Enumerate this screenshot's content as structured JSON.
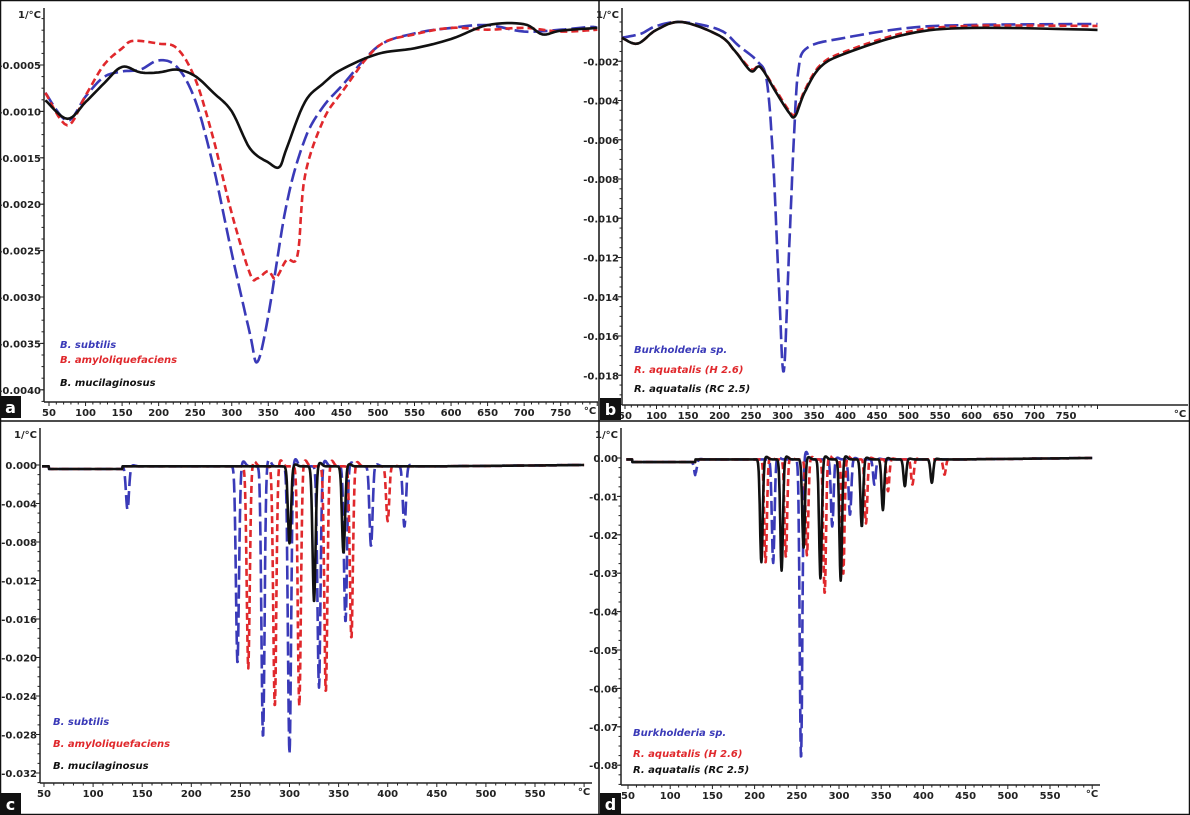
{
  "chart_data": [
    {
      "type": "line",
      "panel_label": "a",
      "ylabel": "1/°C",
      "xunit": "°C",
      "xlim": [
        50,
        800
      ],
      "ylim": [
        -0.004,
        0
      ],
      "xticks": [
        "50",
        "100",
        "150",
        "200",
        "250",
        "300",
        "350",
        "400",
        "450",
        "500",
        "550",
        "600",
        "650",
        "700",
        "750"
      ],
      "yticks": [
        {
          "v": -0.0005,
          "label": "-0.0005"
        },
        {
          "v": -0.001,
          "label": "-0.0010"
        },
        {
          "v": -0.0015,
          "label": "-0.0015"
        },
        {
          "v": -0.002,
          "label": "-0.0020"
        },
        {
          "v": -0.0025,
          "label": "-0.0025"
        },
        {
          "v": -0.003,
          "label": "-0.0030"
        },
        {
          "v": -0.0035,
          "label": "-0.0035"
        },
        {
          "v": -0.004,
          "label": "-0.0040"
        }
      ],
      "series": [
        {
          "name": "B. subtilis",
          "color": "#3a3ab8",
          "style": "long-dash",
          "x": [
            45,
            75,
            100,
            125,
            150,
            175,
            200,
            225,
            250,
            275,
            300,
            325,
            335,
            350,
            375,
            400,
            425,
            450,
            500,
            550,
            600,
            650,
            700,
            750,
            790,
            800
          ],
          "y": [
            -0.0008,
            -0.0011,
            -0.00084,
            -0.00063,
            -0.00057,
            -0.00055,
            -0.00045,
            -0.00052,
            -0.00088,
            -0.0016,
            -0.00253,
            -0.0034,
            -0.0037,
            -0.0032,
            -0.002,
            -0.0013,
            -0.00095,
            -0.00073,
            -0.0003,
            -0.00016,
            -0.0001,
            -7e-05,
            -0.00014,
            -0.00012,
            -9e-05,
            -0.0001
          ]
        },
        {
          "name": "B. amyloliquefaciens",
          "color": "#e0282c",
          "style": "short-dash",
          "x": [
            45,
            75,
            100,
            125,
            150,
            165,
            200,
            225,
            250,
            275,
            300,
            325,
            335,
            350,
            360,
            375,
            390,
            400,
            425,
            450,
            500,
            550,
            600,
            650,
            700,
            750,
            800
          ],
          "y": [
            -0.0008,
            -0.00115,
            -0.00083,
            -0.0005,
            -0.00032,
            -0.00024,
            -0.00027,
            -0.00032,
            -0.00065,
            -0.0013,
            -0.0021,
            -0.00275,
            -0.0028,
            -0.00272,
            -0.0028,
            -0.0026,
            -0.00255,
            -0.0017,
            -0.0011,
            -0.0008,
            -0.0003,
            -0.00017,
            -0.0001,
            -0.00012,
            -0.0001,
            -0.00014,
            -0.00012
          ]
        },
        {
          "name": "B. mucilaginosus",
          "color": "#111111",
          "style": "solid",
          "x": [
            45,
            75,
            100,
            125,
            150,
            175,
            200,
            225,
            250,
            275,
            300,
            325,
            350,
            365,
            375,
            400,
            425,
            450,
            500,
            550,
            600,
            650,
            700,
            725,
            750,
            800
          ],
          "y": [
            -0.00088,
            -0.00108,
            -0.0009,
            -0.0007,
            -0.00052,
            -0.00058,
            -0.00058,
            -0.00055,
            -0.00062,
            -0.0008,
            -0.001,
            -0.0014,
            -0.00155,
            -0.0016,
            -0.0014,
            -0.0009,
            -0.0007,
            -0.00055,
            -0.00038,
            -0.00032,
            -0.00022,
            -7e-05,
            -6e-05,
            -0.00017,
            -0.00013,
            -0.0001
          ]
        }
      ]
    },
    {
      "type": "line",
      "panel_label": "b",
      "ylabel": "1/°C",
      "xunit": "°C",
      "xlim": [
        50,
        800
      ],
      "ylim": [
        -0.019,
        0
      ],
      "xticks": [
        "50",
        "100",
        "150",
        "200",
        "250",
        "300",
        "350",
        "400",
        "450",
        "500",
        "550",
        "600",
        "650",
        "700",
        "750"
      ],
      "yticks": [
        {
          "v": -0.002,
          "label": "-0.002"
        },
        {
          "v": -0.004,
          "label": "-0.004"
        },
        {
          "v": -0.006,
          "label": "-0.006"
        },
        {
          "v": -0.008,
          "label": "-0.008"
        },
        {
          "v": -0.01,
          "label": "-0.010"
        },
        {
          "v": -0.012,
          "label": "-0.012"
        },
        {
          "v": -0.014,
          "label": "-0.014"
        },
        {
          "v": -0.016,
          "label": "-0.016"
        },
        {
          "v": -0.018,
          "label": "-0.018"
        }
      ],
      "series": [
        {
          "name": "Burkholderia sp.",
          "color": "#3a3ab8",
          "style": "long-dash",
          "x": [
            45,
            75,
            100,
            140,
            200,
            230,
            260,
            275,
            285,
            295,
            302,
            310,
            318,
            325,
            340,
            400,
            500,
            600,
            800
          ],
          "y": [
            -0.0008,
            -0.0006,
            -0.0002,
            0,
            -0.0004,
            -0.0012,
            -0.002,
            -0.003,
            -0.007,
            -0.014,
            -0.0178,
            -0.012,
            -0.006,
            -0.0025,
            -0.0013,
            -0.0008,
            -0.0003,
            -0.00015,
            -0.0001
          ]
        },
        {
          "name": "R. aquatalis (H 2.6)",
          "color": "#e0282c",
          "style": "short-dash",
          "x": [
            45,
            70,
            100,
            140,
            200,
            225,
            250,
            265,
            290,
            310,
            320,
            335,
            360,
            400,
            500,
            600,
            800
          ],
          "y": [
            -0.0008,
            -0.0011,
            -0.0004,
            0,
            -0.0007,
            -0.0015,
            -0.0024,
            -0.0023,
            -0.0035,
            -0.0045,
            -0.0047,
            -0.0035,
            -0.0022,
            -0.0015,
            -0.0005,
            -0.0002,
            -0.0002
          ]
        },
        {
          "name": "R. aquatalis (RC 2.5)",
          "color": "#111111",
          "style": "solid",
          "x": [
            45,
            70,
            100,
            140,
            200,
            225,
            250,
            265,
            290,
            310,
            320,
            335,
            360,
            400,
            500,
            600,
            800
          ],
          "y": [
            -0.0008,
            -0.0011,
            -0.0004,
            0,
            -0.0007,
            -0.0015,
            -0.0025,
            -0.0023,
            -0.0036,
            -0.0046,
            -0.0048,
            -0.0036,
            -0.0023,
            -0.0016,
            -0.0006,
            -0.0003,
            -0.0004
          ]
        }
      ]
    },
    {
      "type": "line",
      "panel_label": "c",
      "ylabel": "1/°C",
      "xunit": "°C",
      "xlim": [
        50,
        600
      ],
      "ylim": [
        -0.033,
        0.002
      ],
      "xticks": [
        "50",
        "100",
        "150",
        "200",
        "250",
        "300",
        "350",
        "400",
        "450",
        "500",
        "550"
      ],
      "yticks": [
        {
          "v": 0,
          "label": "0.000"
        },
        {
          "v": -0.004,
          "label": "-0.004"
        },
        {
          "v": -0.008,
          "label": "-0.008"
        },
        {
          "v": -0.012,
          "label": "-0.012"
        },
        {
          "v": -0.016,
          "label": "-0.016"
        },
        {
          "v": -0.02,
          "label": "-0.020"
        },
        {
          "v": -0.024,
          "label": "-0.024"
        },
        {
          "v": -0.028,
          "label": "-0.028"
        },
        {
          "v": -0.032,
          "label": "-0.032"
        }
      ],
      "series": [
        {
          "name": "B. subtilis",
          "color": "#3a3ab8",
          "style": "long-dash",
          "peaks_x": [
            135,
            247,
            273,
            300,
            330,
            357,
            383,
            417
          ],
          "peaks_y": [
            -0.0045,
            -0.0205,
            -0.0282,
            -0.0299,
            -0.023,
            -0.0162,
            -0.0083,
            -0.0063
          ]
        },
        {
          "name": "B. amyloliquefaciens",
          "color": "#e0282c",
          "style": "short-dash",
          "peaks_x": [
            258,
            285,
            310,
            337,
            363,
            400
          ],
          "peaks_y": [
            -0.021,
            -0.025,
            -0.0249,
            -0.0235,
            -0.0179,
            -0.0057
          ]
        },
        {
          "name": "B. mucilaginosus",
          "color": "#111111",
          "style": "solid",
          "peaks_x": [
            300,
            325,
            355
          ],
          "peaks_y": [
            -0.008,
            -0.0141,
            -0.009
          ]
        }
      ]
    },
    {
      "type": "line",
      "panel_label": "d",
      "ylabel": "1/°C",
      "xunit": "°C",
      "xlim": [
        50,
        600
      ],
      "ylim": [
        -0.085,
        0.004
      ],
      "xticks": [
        "50",
        "100",
        "150",
        "200",
        "250",
        "300",
        "350",
        "400",
        "450",
        "500",
        "550"
      ],
      "yticks": [
        {
          "v": 0,
          "label": "0.00"
        },
        {
          "v": -0.01,
          "label": "-0.01"
        },
        {
          "v": -0.02,
          "label": "-0.02"
        },
        {
          "v": -0.03,
          "label": "-0.03"
        },
        {
          "v": -0.04,
          "label": "-0.04"
        },
        {
          "v": -0.05,
          "label": "-0.05"
        },
        {
          "v": -0.06,
          "label": "-0.06"
        },
        {
          "v": -0.07,
          "label": "-0.07"
        },
        {
          "v": -0.08,
          "label": "-0.08"
        }
      ],
      "series": [
        {
          "name": "Burkholderia sp.",
          "color": "#3a3ab8",
          "style": "long-dash",
          "peaks_x": [
            130,
            222,
            255,
            292,
            313,
            342
          ],
          "peaks_y": [
            -0.0035,
            -0.027,
            -0.078,
            -0.0175,
            -0.0145,
            -0.0066
          ]
        },
        {
          "name": "R. aquatalis (H 2.6)",
          "color": "#e0282c",
          "style": "short-dash",
          "peaks_x": [
            213,
            237,
            262,
            283,
            305,
            332,
            358,
            387,
            425
          ],
          "peaks_y": [
            -0.027,
            -0.0255,
            -0.025,
            -0.035,
            -0.03,
            -0.0167,
            -0.0083,
            -0.0066,
            -0.004
          ]
        },
        {
          "name": "R. aquatalis (RC 2.5)",
          "color": "#111111",
          "style": "solid",
          "peaks_x": [
            208,
            232,
            258,
            278,
            302,
            327,
            352,
            378,
            410
          ],
          "peaks_y": [
            -0.0268,
            -0.029,
            -0.023,
            -0.031,
            -0.0316,
            -0.0175,
            -0.0132,
            -0.007,
            -0.0061
          ]
        }
      ]
    }
  ]
}
